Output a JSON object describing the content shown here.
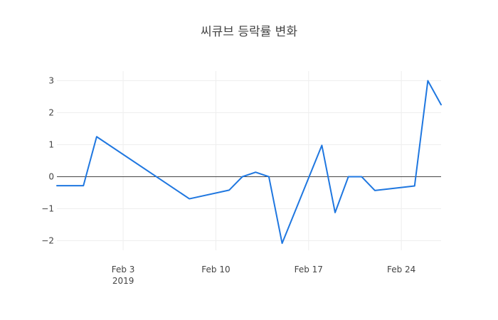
{
  "chart_data": {
    "type": "line",
    "title": "씨큐브 등락률 변화",
    "xlabel": "",
    "ylabel": "",
    "x": [
      "2019-01-29",
      "2019-01-30",
      "2019-01-31",
      "2019-02-01",
      "2019-02-08",
      "2019-02-11",
      "2019-02-12",
      "2019-02-13",
      "2019-02-14",
      "2019-02-15",
      "2019-02-18",
      "2019-02-19",
      "2019-02-20",
      "2019-02-21",
      "2019-02-22",
      "2019-02-25",
      "2019-02-26",
      "2019-02-27"
    ],
    "series": [
      {
        "values": [
          -0.28,
          -0.28,
          -0.28,
          1.25,
          -0.69,
          -0.42,
          0.0,
          0.14,
          0.0,
          -2.08,
          0.98,
          -1.12,
          0.0,
          0.0,
          -0.43,
          -0.29,
          3.0,
          2.25
        ],
        "color": "#1f77e0"
      }
    ],
    "x_range": [
      "2019-01-29",
      "2019-02-27"
    ],
    "ylim": [
      -2.3,
      3.3
    ],
    "x_ticks": [
      {
        "date": "2019-02-03",
        "label": "Feb 3",
        "sublabel": "2019"
      },
      {
        "date": "2019-02-10",
        "label": "Feb 10",
        "sublabel": ""
      },
      {
        "date": "2019-02-17",
        "label": "Feb 17",
        "sublabel": ""
      },
      {
        "date": "2019-02-24",
        "label": "Feb 24",
        "sublabel": ""
      }
    ],
    "y_ticks": [
      {
        "value": 3,
        "label": "3"
      },
      {
        "value": 2,
        "label": "2"
      },
      {
        "value": 1,
        "label": "1"
      },
      {
        "value": 0,
        "label": "0"
      },
      {
        "value": -1,
        "label": "−1"
      },
      {
        "value": -2,
        "label": "−2"
      }
    ],
    "grid": true,
    "zero_line": true,
    "legend": "none"
  }
}
